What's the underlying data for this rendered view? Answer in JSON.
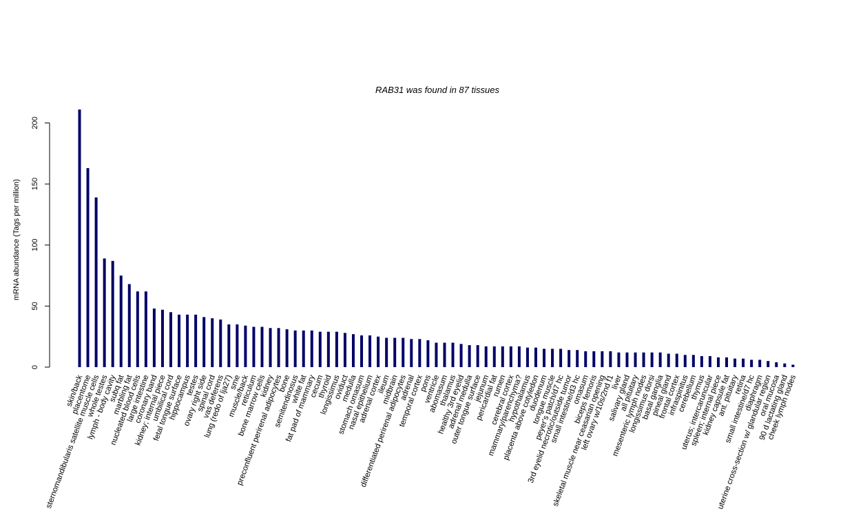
{
  "chart_data": {
    "type": "bar",
    "title": "RAB31  was found in  87  tissues",
    "xlabel": "",
    "ylabel": "mRNA abundance (Tags per million)",
    "ylim": [
      0,
      212
    ],
    "yticks": [
      0,
      50,
      100,
      150,
      200
    ],
    "bar_color": "#000066",
    "grid": false,
    "categories": [
      "skin/back",
      "placentome",
      "sternomandibularis satellite muscle cells",
      "whole testes",
      "lymph - body cavity",
      "subq fat",
      "marbling fat",
      "nucleated blood cells",
      "large intestine",
      "coronary band",
      "kidney; internal piece",
      "umbilical cord",
      "fetal tongue surface",
      "hippocampus",
      "testes",
      "ovary right side",
      "spinal cord",
      "vas deferens",
      "lung (redo of lja27)",
      "sme",
      "muscle/back",
      "reticulum",
      "bone marrow cells",
      "kidney",
      "preconfluent perirenal adipocytes",
      "bone",
      "semitendinosus",
      "white fat",
      "fat pad of mammary",
      "cecum",
      "thyroid",
      "longissimus",
      "oviduct",
      "medulla",
      "stomach omasum",
      "nasal epithelium",
      "adrenal cortex",
      "ileum",
      "midbrain",
      "differentiated perirenal adipocytes",
      "adrenal",
      "temporal cortex",
      "pons",
      "ventricle",
      "abomasum",
      "thalamus",
      "healthy 3rd eyelid",
      "adrenal medulla",
      "outer tongue surface",
      "jejunum",
      "pericardial fat",
      "rumen",
      "cerebral cortex",
      "mammary/parenchyma?",
      "hypothalamus",
      "placenta above cotyledon",
      "duodenum",
      "tongue muscle",
      "peyer's patch/d7 hc",
      "3rd eyelid necrotic/outside tumor",
      "small intestine/d3 hc",
      "omasum",
      "biceps femoris",
      "skeletal muscle near ceasarian opening",
      "left ovary w/10s/2nd f1",
      "liver",
      "salivary gland",
      "all pituitary",
      "mesenteric lymph nodes",
      "longissimus dorsi",
      "basal ganglia",
      "pineal gland",
      "frontal cortex",
      "infraspinitus",
      "cerebellum",
      "thymus",
      "uterus; intercaruncular",
      "spleen; internal piece",
      "kidney capsule fat",
      "ant. pituitary",
      "retina",
      "small intestine/d7 hc",
      "diaphragm",
      "uterine cross-section w/ glandular region",
      "oral mucosa",
      "90 d lactating gland",
      "cheek lymph nodes"
    ],
    "values": [
      211,
      163,
      139,
      89,
      87,
      75,
      68,
      62,
      62,
      48,
      47,
      45,
      43,
      43,
      43,
      41,
      40,
      39,
      35,
      35,
      34,
      33,
      33,
      32,
      32,
      31,
      30,
      30,
      30,
      29,
      29,
      29,
      28,
      27,
      26,
      26,
      25,
      24,
      24,
      24,
      23,
      23,
      22,
      20,
      20,
      20,
      19,
      18,
      18,
      17,
      17,
      17,
      17,
      17,
      16,
      16,
      15,
      15,
      15,
      14,
      14,
      13,
      13,
      13,
      13,
      12,
      12,
      12,
      12,
      12,
      12,
      11,
      11,
      10,
      10,
      9,
      9,
      8,
      8,
      7,
      7,
      6,
      6,
      5,
      4,
      3,
      2
    ]
  }
}
